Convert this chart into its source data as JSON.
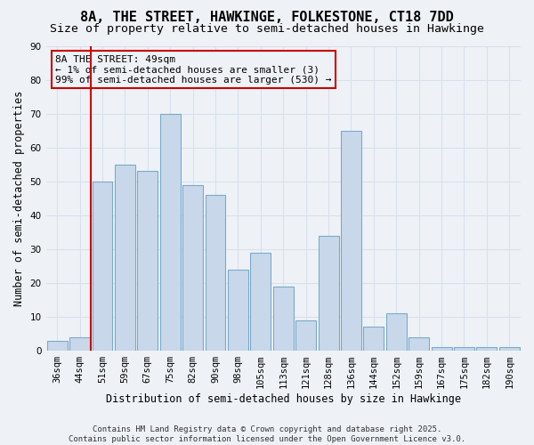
{
  "title": "8A, THE STREET, HAWKINGE, FOLKESTONE, CT18 7DD",
  "subtitle": "Size of property relative to semi-detached houses in Hawkinge",
  "xlabel": "Distribution of semi-detached houses by size in Hawkinge",
  "ylabel": "Number of semi-detached properties",
  "categories": [
    "36sqm",
    "44sqm",
    "51sqm",
    "59sqm",
    "67sqm",
    "75sqm",
    "82sqm",
    "90sqm",
    "98sqm",
    "105sqm",
    "113sqm",
    "121sqm",
    "128sqm",
    "136sqm",
    "144sqm",
    "152sqm",
    "159sqm",
    "167sqm",
    "175sqm",
    "182sqm",
    "190sqm"
  ],
  "values": [
    3,
    4,
    50,
    55,
    53,
    70,
    49,
    46,
    24,
    29,
    19,
    9,
    34,
    65,
    7,
    11,
    4,
    1,
    1,
    1,
    1
  ],
  "bar_color": "#c8d8ea",
  "bar_edge_color": "#7aaac8",
  "red_line_x": 1.5,
  "red_line_color": "#cc0000",
  "annotation_text": "8A THE STREET: 49sqm\n← 1% of semi-detached houses are smaller (3)\n99% of semi-detached houses are larger (530) →",
  "annotation_box_edge_color": "#cc0000",
  "ylim": [
    0,
    90
  ],
  "yticks": [
    0,
    10,
    20,
    30,
    40,
    50,
    60,
    70,
    80,
    90
  ],
  "background_color": "#eef2f7",
  "grid_color": "#d8e0ec",
  "footnote": "Contains HM Land Registry data © Crown copyright and database right 2025.\nContains public sector information licensed under the Open Government Licence v3.0.",
  "title_fontsize": 11,
  "subtitle_fontsize": 9.5,
  "xlabel_fontsize": 8.5,
  "ylabel_fontsize": 8.5,
  "tick_fontsize": 7.5,
  "annotation_fontsize": 8,
  "footnote_fontsize": 6.5
}
